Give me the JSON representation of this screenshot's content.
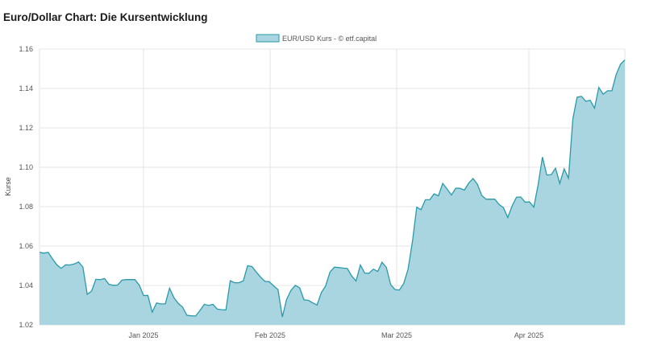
{
  "page": {
    "title": "Euro/Dollar Chart: Die Kursentwicklung"
  },
  "chart_data": {
    "type": "area",
    "ylabel": "Kurse",
    "ylim": [
      1.02,
      1.16
    ],
    "yticks": [
      "1.02",
      "1.04",
      "1.06",
      "1.08",
      "1.10",
      "1.12",
      "1.14",
      "1.16"
    ],
    "xticks": [
      "Jan 2025",
      "Feb 2025",
      "Mar 2025",
      "Apr 2025"
    ],
    "grid": true,
    "legend_position": "top-center",
    "colors": {
      "fill": "#a8d5df",
      "line": "#2a9aaa",
      "grid": "#e4e4e4"
    },
    "series": [
      {
        "name": "EUR/USD Kurs - © etf.capital",
        "values": [
          1.0568,
          1.0564,
          1.0568,
          1.0535,
          1.0505,
          1.0487,
          1.0505,
          1.0504,
          1.0509,
          1.0519,
          1.0494,
          1.0355,
          1.0371,
          1.0431,
          1.043,
          1.0435,
          1.0406,
          1.0401,
          1.0402,
          1.0427,
          1.043,
          1.043,
          1.043,
          1.0402,
          1.0349,
          1.035,
          1.0265,
          1.0311,
          1.0306,
          1.0307,
          1.0386,
          1.0338,
          1.0309,
          1.029,
          1.0249,
          1.0246,
          1.0245,
          1.0273,
          1.0304,
          1.0299,
          1.0304,
          1.028,
          1.0277,
          1.0276,
          1.0424,
          1.0414,
          1.0414,
          1.0424,
          1.05,
          1.0496,
          1.0468,
          1.0442,
          1.0421,
          1.0419,
          1.0398,
          1.0379,
          1.024,
          1.033,
          1.0375,
          1.0401,
          1.0388,
          1.0327,
          1.0325,
          1.0312,
          1.0301,
          1.0364,
          1.0398,
          1.0468,
          1.0493,
          1.0491,
          1.0488,
          1.0486,
          1.0448,
          1.0423,
          1.0504,
          1.0463,
          1.0462,
          1.0483,
          1.0471,
          1.0518,
          1.0492,
          1.0404,
          1.0379,
          1.0377,
          1.041,
          1.0482,
          1.0621,
          1.0797,
          1.0785,
          1.0835,
          1.0835,
          1.0865,
          1.0855,
          1.0918,
          1.089,
          1.0859,
          1.0894,
          1.0893,
          1.0884,
          1.092,
          1.0943,
          1.0913,
          1.0857,
          1.0838,
          1.0838,
          1.0838,
          1.0811,
          1.0795,
          1.0745,
          1.0804,
          1.0848,
          1.0849,
          1.0823,
          1.0824,
          1.0798,
          1.091,
          1.1052,
          1.0961,
          1.0962,
          1.0995,
          1.0918,
          1.0992,
          1.0944,
          1.1245,
          1.1356,
          1.136,
          1.1335,
          1.134,
          1.13,
          1.1405,
          1.1371,
          1.1388,
          1.1388,
          1.147,
          1.1523,
          1.1545
        ]
      }
    ]
  }
}
